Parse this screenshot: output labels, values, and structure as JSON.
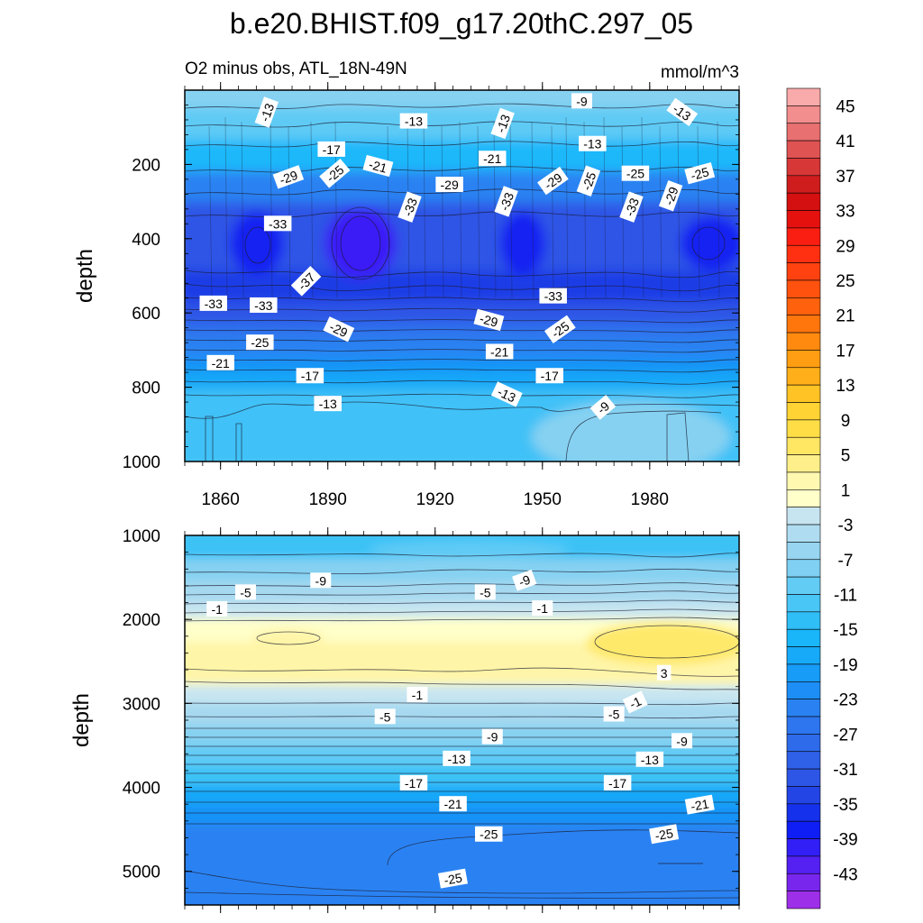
{
  "title": "b.e20.BHIST.f09_g17.20thC.297_05",
  "subtitle_left": "O2 minus obs, ATL_18N-49N",
  "units": "mmol/m^3",
  "colors": {
    "negative_ramp": [
      "#9e2fe8",
      "#6a22ef",
      "#3a1ff6",
      "#0b1ef5",
      "#1d3ce6",
      "#2d55e6",
      "#2f63e8",
      "#2e72ee",
      "#2a82f2",
      "#1893f7",
      "#16a7f8",
      "#1ab8fa",
      "#3cc2f6",
      "#5fcbf5",
      "#86d1f1",
      "#a6d9f0",
      "#c7e5f0"
    ],
    "positive_ramp": [
      "#ffffc9",
      "#fff5a8",
      "#ffe96b",
      "#ffdc45",
      "#ffcf2d",
      "#ffb31b",
      "#ff9c12",
      "#ff810e",
      "#ff640c",
      "#ff4f10",
      "#ff3a10",
      "#fb1e12",
      "#e00e0e",
      "#cc1212",
      "#d73535",
      "#e35b5b",
      "#ef8484",
      "#f9aaaa"
    ]
  },
  "chart_data": [
    {
      "type": "contour",
      "name": "upper",
      "ylabel": "depth",
      "xlim": [
        1850,
        2005
      ],
      "ylim": [
        0,
        1000
      ],
      "y_inverted": true,
      "xticks": [
        1860,
        1890,
        1920,
        1950,
        1980
      ],
      "yticks": [
        200,
        400,
        600,
        800,
        1000
      ],
      "contour_labels": [
        {
          "text": "-13",
          "x": 1873,
          "y": 60,
          "rot": -70
        },
        {
          "text": "-13",
          "x": 1914,
          "y": 84,
          "rot": 0
        },
        {
          "text": "-13",
          "x": 1939,
          "y": 90,
          "rot": -70
        },
        {
          "text": "-9",
          "x": 1961,
          "y": 30,
          "rot": 0
        },
        {
          "text": "-13",
          "x": 1964,
          "y": 145,
          "rot": 0
        },
        {
          "text": "-13",
          "x": 1989,
          "y": 60,
          "rot": 35
        },
        {
          "text": "-17",
          "x": 1891,
          "y": 160,
          "rot": 0
        },
        {
          "text": "-21",
          "x": 1936,
          "y": 185,
          "rot": 0
        },
        {
          "text": "-21",
          "x": 1904,
          "y": 205,
          "rot": 15
        },
        {
          "text": "-25",
          "x": 1892,
          "y": 225,
          "rot": -40
        },
        {
          "text": "-29",
          "x": 1879,
          "y": 235,
          "rot": -20
        },
        {
          "text": "-29",
          "x": 1924,
          "y": 255,
          "rot": 0
        },
        {
          "text": "-29",
          "x": 1953,
          "y": 245,
          "rot": -35
        },
        {
          "text": "-25",
          "x": 1963,
          "y": 245,
          "rot": -70
        },
        {
          "text": "-25",
          "x": 1976,
          "y": 225,
          "rot": 0
        },
        {
          "text": "-25",
          "x": 1994,
          "y": 225,
          "rot": -15
        },
        {
          "text": "-29",
          "x": 1986,
          "y": 285,
          "rot": -70
        },
        {
          "text": "-33",
          "x": 1913,
          "y": 315,
          "rot": -70
        },
        {
          "text": "-33",
          "x": 1940,
          "y": 300,
          "rot": -70
        },
        {
          "text": "-33",
          "x": 1975,
          "y": 315,
          "rot": -70
        },
        {
          "text": "-33",
          "x": 1876,
          "y": 360,
          "rot": 0
        },
        {
          "text": "-37",
          "x": 1884,
          "y": 515,
          "rot": -45
        },
        {
          "text": "-33",
          "x": 1858,
          "y": 575,
          "rot": 0
        },
        {
          "text": "-33",
          "x": 1872,
          "y": 580,
          "rot": 0
        },
        {
          "text": "-33",
          "x": 1953,
          "y": 555,
          "rot": 0
        },
        {
          "text": "-29",
          "x": 1893,
          "y": 645,
          "rot": 25
        },
        {
          "text": "-29",
          "x": 1935,
          "y": 620,
          "rot": 15
        },
        {
          "text": "-25",
          "x": 1871,
          "y": 680,
          "rot": 0
        },
        {
          "text": "-25",
          "x": 1955,
          "y": 645,
          "rot": -35
        },
        {
          "text": "-21",
          "x": 1860,
          "y": 735,
          "rot": 0
        },
        {
          "text": "-21",
          "x": 1938,
          "y": 705,
          "rot": 0
        },
        {
          "text": "-17",
          "x": 1885,
          "y": 770,
          "rot": 0
        },
        {
          "text": "-17",
          "x": 1952,
          "y": 770,
          "rot": 0
        },
        {
          "text": "-13",
          "x": 1890,
          "y": 845,
          "rot": 0
        },
        {
          "text": "-13",
          "x": 1940,
          "y": 820,
          "rot": 25
        },
        {
          "text": "-9",
          "x": 1967,
          "y": 855,
          "rot": -40
        }
      ]
    },
    {
      "type": "contour",
      "name": "lower",
      "ylabel": "depth",
      "xlim": [
        1850,
        2005
      ],
      "ylim": [
        1000,
        5400
      ],
      "y_inverted": true,
      "yticks": [
        1000,
        2000,
        3000,
        4000,
        5000
      ],
      "contour_labels": [
        {
          "text": "-9",
          "x": 1888,
          "y": 1540,
          "rot": 0
        },
        {
          "text": "-9",
          "x": 1945,
          "y": 1540,
          "rot": -20
        },
        {
          "text": "-5",
          "x": 1867,
          "y": 1680,
          "rot": 0
        },
        {
          "text": "-5",
          "x": 1934,
          "y": 1680,
          "rot": 0
        },
        {
          "text": "-1",
          "x": 1859,
          "y": 1880,
          "rot": 0
        },
        {
          "text": "-1",
          "x": 1950,
          "y": 1870,
          "rot": 0
        },
        {
          "text": "3",
          "x": 1984,
          "y": 2640,
          "rot": 0
        },
        {
          "text": "-1",
          "x": 1915,
          "y": 2900,
          "rot": 0
        },
        {
          "text": "-1",
          "x": 1976,
          "y": 2990,
          "rot": -25
        },
        {
          "text": "-5",
          "x": 1906,
          "y": 3160,
          "rot": 0
        },
        {
          "text": "-5",
          "x": 1970,
          "y": 3130,
          "rot": 0
        },
        {
          "text": "-9",
          "x": 1936,
          "y": 3400,
          "rot": 0
        },
        {
          "text": "-9",
          "x": 1989,
          "y": 3450,
          "rot": 0
        },
        {
          "text": "-13",
          "x": 1926,
          "y": 3660,
          "rot": 0
        },
        {
          "text": "-13",
          "x": 1980,
          "y": 3670,
          "rot": 0
        },
        {
          "text": "-17",
          "x": 1914,
          "y": 3950,
          "rot": 0
        },
        {
          "text": "-17",
          "x": 1971,
          "y": 3950,
          "rot": 0
        },
        {
          "text": "-21",
          "x": 1925,
          "y": 4200,
          "rot": 0
        },
        {
          "text": "-21",
          "x": 1994,
          "y": 4210,
          "rot": -10
        },
        {
          "text": "-25",
          "x": 1935,
          "y": 4560,
          "rot": 0
        },
        {
          "text": "-25",
          "x": 1984,
          "y": 4560,
          "rot": -10
        },
        {
          "text": "-25",
          "x": 1925,
          "y": 5090,
          "rot": -10
        }
      ]
    }
  ],
  "colorbar": {
    "levels": [
      -45,
      -43,
      -41,
      -39,
      -37,
      -35,
      -33,
      -31,
      -29,
      -27,
      -25,
      -23,
      -21,
      -19,
      -17,
      -15,
      -13,
      -11,
      -9,
      -7,
      -5,
      -3,
      -1,
      1,
      3,
      5,
      7,
      9,
      11,
      13,
      15,
      17,
      19,
      21,
      23,
      25,
      27,
      29,
      31,
      33,
      35,
      37,
      39,
      41,
      43,
      45
    ],
    "tick_labels": [
      "45",
      "41",
      "37",
      "33",
      "29",
      "25",
      "21",
      "17",
      "13",
      "9",
      "5",
      "1",
      "-3",
      "-7",
      "-11",
      "-15",
      "-19",
      "-23",
      "-27",
      "-31",
      "-35",
      "-39",
      "-43"
    ]
  }
}
